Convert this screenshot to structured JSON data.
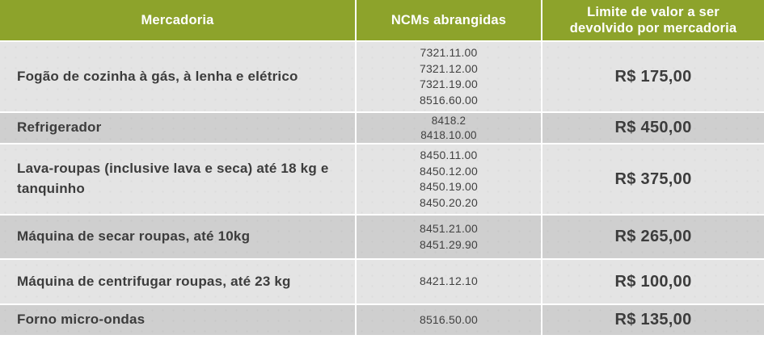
{
  "chart_data": {
    "type": "table",
    "title": "",
    "columns": [
      "Mercadoria",
      "NCMs abrangidas",
      "Limite de valor a ser devolvido por mercadoria"
    ],
    "rows": [
      [
        "Fogão de cozinha à gás, à lenha e elétrico",
        "7321.11.00 / 7321.12.00 / 7321.19.00 / 8516.60.00",
        "R$ 175,00"
      ],
      [
        "Refrigerador",
        "8418.2 / 8418.10.00",
        "R$ 450,00"
      ],
      [
        "Lava-roupas (inclusive lava e seca) até 18 kg e tanquinho",
        "8450.11.00 / 8450.12.00 / 8450.19.00 / 8450.20.20",
        "R$ 375,00"
      ],
      [
        "Máquina de secar roupas, até 10kg",
        "8451.21.00 / 8451.29.90",
        "R$ 265,00"
      ],
      [
        "Máquina de centrifugar roupas, até 23 kg",
        "8421.12.10",
        "R$ 100,00"
      ],
      [
        "Forno micro-ondas",
        "8516.50.00",
        "R$ 135,00"
      ]
    ]
  },
  "table": {
    "headers": {
      "mercadoria": "Mercadoria",
      "ncms": "NCMs abrangidas",
      "limite": "Limite de valor a ser devolvido por mercadoria"
    },
    "rows": [
      {
        "mercadoria": "Fogão de cozinha à gás, à lenha e elétrico",
        "ncms": [
          "7321.11.00",
          "7321.12.00",
          "7321.19.00",
          "8516.60.00"
        ],
        "limite": "R$ 175,00"
      },
      {
        "mercadoria": "Refrigerador",
        "ncms": [
          "8418.2",
          "8418.10.00"
        ],
        "limite": "R$ 450,00"
      },
      {
        "mercadoria": "Lava-roupas (inclusive lava e seca) até 18 kg e tanquinho",
        "ncms": [
          "8450.11.00",
          "8450.12.00",
          "8450.19.00",
          "8450.20.20"
        ],
        "limite": "R$ 375,00"
      },
      {
        "mercadoria": "Máquina de secar roupas, até 10kg",
        "ncms": [
          "8451.21.00",
          "8451.29.90"
        ],
        "limite": "R$ 265,00"
      },
      {
        "mercadoria": "Máquina de centrifugar roupas, até 23 kg",
        "ncms": [
          "8421.12.10"
        ],
        "limite": "R$ 100,00"
      },
      {
        "mercadoria": "Forno micro-ondas",
        "ncms": [
          "8516.50.00"
        ],
        "limite": "R$ 135,00"
      }
    ],
    "colors": {
      "header_bg": "#8DA32B",
      "header_text": "#FFFFFF",
      "row_light": "#E4E4E4",
      "row_dark": "#CFCFCF",
      "text": "#3C3C3C",
      "separator": "#FFFFFF"
    }
  }
}
